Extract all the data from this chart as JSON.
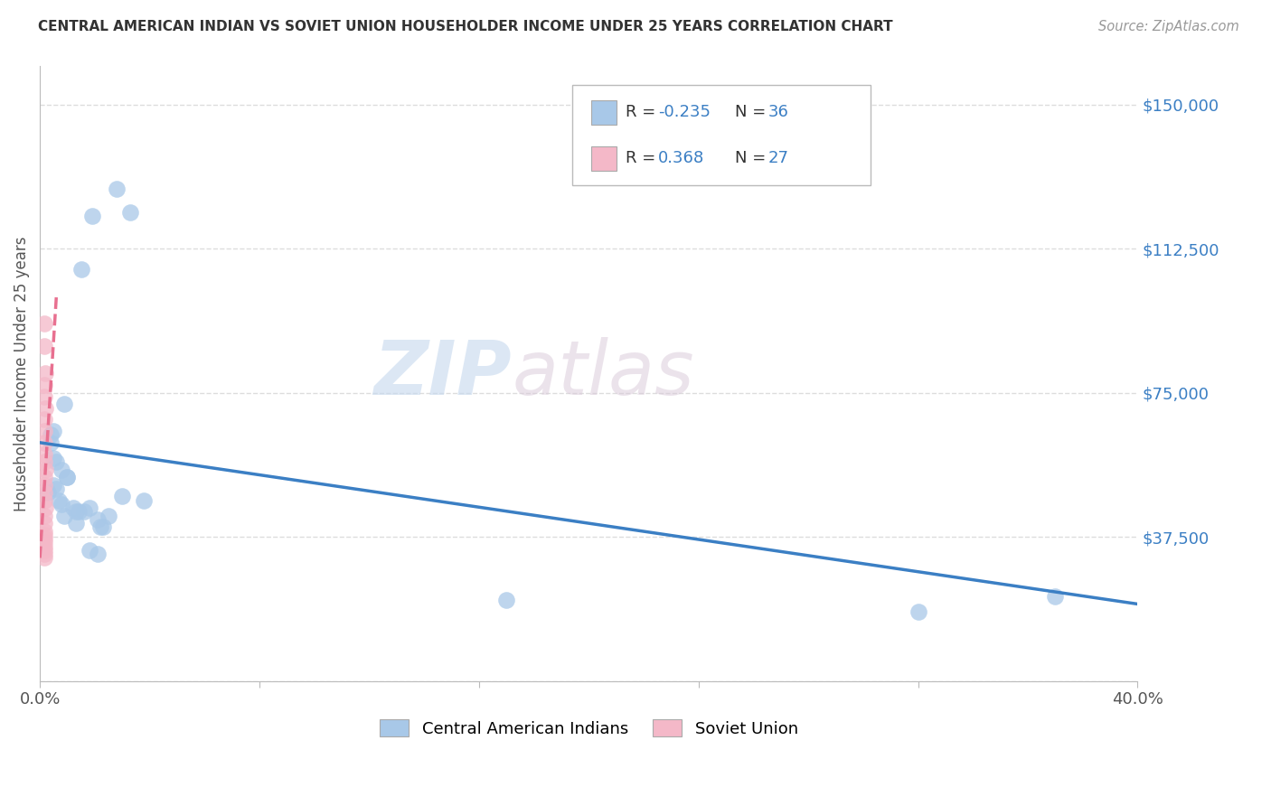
{
  "title": "CENTRAL AMERICAN INDIAN VS SOVIET UNION HOUSEHOLDER INCOME UNDER 25 YEARS CORRELATION CHART",
  "source": "Source: ZipAtlas.com",
  "ylabel": "Householder Income Under 25 years",
  "xlim": [
    0.0,
    0.4
  ],
  "ylim": [
    0,
    160000
  ],
  "yticks": [
    0,
    37500,
    75000,
    112500,
    150000
  ],
  "ytick_labels": [
    "",
    "$37,500",
    "$75,000",
    "$112,500",
    "$150,000"
  ],
  "xticks": [
    0.0,
    0.08,
    0.16,
    0.24,
    0.32,
    0.4
  ],
  "xtick_labels": [
    "0.0%",
    "",
    "",
    "",
    "",
    "40.0%"
  ],
  "watermark_zip": "ZIP",
  "watermark_atlas": "atlas",
  "blue_color": "#A8C8E8",
  "pink_color": "#F4B8C8",
  "blue_line_color": "#3B7FC4",
  "pink_line_color": "#E87090",
  "grid_color": "#DDDDDD",
  "background_color": "#FFFFFF",
  "title_color": "#333333",
  "source_color": "#999999",
  "ylabel_color": "#555555",
  "ytick_color": "#3B7FC4",
  "blue_scatter_x": [
    0.028,
    0.033,
    0.015,
    0.019,
    0.005,
    0.004,
    0.004,
    0.005,
    0.006,
    0.008,
    0.01,
    0.005,
    0.006,
    0.003,
    0.007,
    0.008,
    0.012,
    0.013,
    0.009,
    0.01,
    0.014,
    0.016,
    0.018,
    0.021,
    0.025,
    0.03,
    0.038,
    0.17,
    0.013,
    0.022,
    0.023,
    0.32,
    0.37,
    0.018,
    0.021,
    0.009
  ],
  "blue_scatter_y": [
    128000,
    122000,
    107000,
    121000,
    65000,
    64000,
    62000,
    58000,
    57000,
    55000,
    53000,
    51000,
    50000,
    49000,
    47000,
    46000,
    45000,
    44000,
    43000,
    53000,
    44000,
    44000,
    45000,
    42000,
    43000,
    48000,
    47000,
    21000,
    41000,
    40000,
    40000,
    18000,
    22000,
    34000,
    33000,
    72000
  ],
  "pink_scatter_x": [
    0.0015,
    0.0015,
    0.0018,
    0.0015,
    0.0015,
    0.0018,
    0.0015,
    0.0015,
    0.0015,
    0.0015,
    0.0015,
    0.0018,
    0.0015,
    0.0015,
    0.0015,
    0.0015,
    0.0018,
    0.0015,
    0.0015,
    0.0015,
    0.0015,
    0.0015,
    0.0015,
    0.0015,
    0.0015,
    0.0015,
    0.0015
  ],
  "pink_scatter_y": [
    93000,
    87000,
    80000,
    77000,
    74000,
    71000,
    68000,
    65000,
    62000,
    59000,
    57000,
    55000,
    53000,
    51000,
    49000,
    47000,
    45000,
    43000,
    41000,
    39000,
    38000,
    37000,
    36000,
    35000,
    34000,
    33000,
    32000
  ],
  "blue_line_x": [
    0.0,
    0.4
  ],
  "blue_line_y": [
    62000,
    20000
  ],
  "pink_line_x": [
    0.0,
    0.006
  ],
  "pink_line_y": [
    32000,
    100000
  ]
}
